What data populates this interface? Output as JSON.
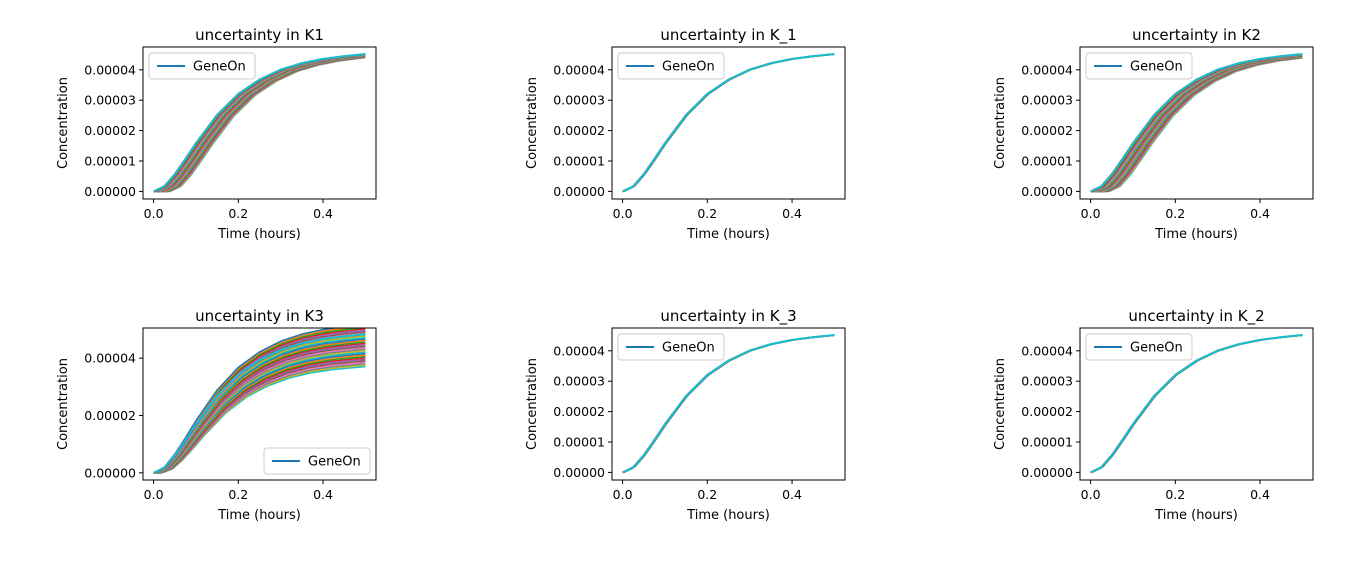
{
  "chart_data": [
    {
      "type": "line",
      "title": "uncertainty in K1",
      "xlabel": "Time (hours)",
      "ylabel": "Concentration",
      "xlim": [
        -0.025,
        0.525
      ],
      "ylim": [
        -2.5e-06,
        4.75e-05
      ],
      "xticks": [
        "0.0",
        "0.2",
        "0.4"
      ],
      "yticks": [
        "0.00000",
        "0.00001",
        "0.00002",
        "0.00003",
        "0.00004"
      ],
      "legend": {
        "label": "GeneOn",
        "position": "upper left"
      },
      "ensemble": {
        "curves": 30,
        "shift_min": 0.0,
        "shift_max": 0.04,
        "scale_min": 1.0,
        "scale_max": 0.985
      },
      "highlight_series": {
        "name": "GeneOn",
        "x": [
          0,
          0.025,
          0.05,
          0.075,
          0.1,
          0.15,
          0.2,
          0.25,
          0.3,
          0.35,
          0.4,
          0.45,
          0.5
        ],
        "y": [
          0,
          1.7e-06,
          5.7e-06,
          1.07e-05,
          1.59e-05,
          2.52e-05,
          3.21e-05,
          3.68e-05,
          4.01e-05,
          4.22e-05,
          4.36e-05,
          4.45e-05,
          4.52e-05
        ]
      }
    },
    {
      "type": "line",
      "title": "uncertainty in K_1",
      "xlabel": "Time (hours)",
      "ylabel": "Concentration",
      "xlim": [
        -0.025,
        0.525
      ],
      "ylim": [
        -2.5e-06,
        4.75e-05
      ],
      "xticks": [
        "0.0",
        "0.2",
        "0.4"
      ],
      "yticks": [
        "0.00000",
        "0.00001",
        "0.00002",
        "0.00003",
        "0.00004"
      ],
      "legend": {
        "label": "GeneOn",
        "position": "upper left"
      },
      "ensemble": {
        "curves": 30,
        "shift_min": 0.0,
        "shift_max": 0.003,
        "scale_min": 1.0,
        "scale_max": 0.999
      },
      "highlight_series": {
        "name": "GeneOn",
        "x": [
          0,
          0.025,
          0.05,
          0.075,
          0.1,
          0.15,
          0.2,
          0.25,
          0.3,
          0.35,
          0.4,
          0.45,
          0.5
        ],
        "y": [
          0,
          1.7e-06,
          5.7e-06,
          1.07e-05,
          1.59e-05,
          2.52e-05,
          3.21e-05,
          3.68e-05,
          4.01e-05,
          4.22e-05,
          4.36e-05,
          4.45e-05,
          4.52e-05
        ]
      }
    },
    {
      "type": "line",
      "title": "uncertainty in K2",
      "xlabel": "Time (hours)",
      "ylabel": "Concentration",
      "xlim": [
        -0.025,
        0.525
      ],
      "ylim": [
        -2.5e-06,
        4.75e-05
      ],
      "xticks": [
        "0.0",
        "0.2",
        "0.4"
      ],
      "yticks": [
        "0.00000",
        "0.00001",
        "0.00002",
        "0.00003",
        "0.00004"
      ],
      "legend": {
        "label": "GeneOn",
        "position": "upper left"
      },
      "ensemble": {
        "curves": 30,
        "shift_min": 0.0,
        "shift_max": 0.045,
        "scale_min": 1.0,
        "scale_max": 0.985
      },
      "highlight_series": {
        "name": "GeneOn",
        "x": [
          0,
          0.025,
          0.05,
          0.075,
          0.1,
          0.15,
          0.2,
          0.25,
          0.3,
          0.35,
          0.4,
          0.45,
          0.5
        ],
        "y": [
          0,
          1.7e-06,
          5.7e-06,
          1.07e-05,
          1.59e-05,
          2.52e-05,
          3.21e-05,
          3.68e-05,
          4.01e-05,
          4.22e-05,
          4.36e-05,
          4.45e-05,
          4.52e-05
        ]
      }
    },
    {
      "type": "line",
      "title": "uncertainty in K3",
      "xlabel": "Time (hours)",
      "ylabel": "Concentration",
      "xlim": [
        -0.025,
        0.525
      ],
      "ylim": [
        -2.5e-06,
        5.05e-05
      ],
      "xticks": [
        "0.0",
        "0.2",
        "0.4"
      ],
      "yticks": [
        "0.00000",
        "0.00002",
        "0.00004"
      ],
      "legend": {
        "label": "GeneOn",
        "position": "lower right"
      },
      "ensemble": {
        "curves": 30,
        "shift_min": 0.0,
        "shift_max": 0.02,
        "scale_min": 1.07,
        "scale_max": 0.77
      },
      "highlight_series": {
        "name": "GeneOn",
        "x": [
          0,
          0.025,
          0.05,
          0.075,
          0.1,
          0.15,
          0.2,
          0.25,
          0.3,
          0.35,
          0.4,
          0.45,
          0.5
        ],
        "y": [
          0,
          1.8e-06,
          6.1e-06,
          1.14e-05,
          1.7e-05,
          2.7e-05,
          3.44e-05,
          3.94e-05,
          4.29e-05,
          4.52e-05,
          4.67e-05,
          4.76e-05,
          4.84e-05
        ]
      }
    },
    {
      "type": "line",
      "title": "uncertainty in K_3",
      "xlabel": "Time (hours)",
      "ylabel": "Concentration",
      "xlim": [
        -0.025,
        0.525
      ],
      "ylim": [
        -2.5e-06,
        4.75e-05
      ],
      "xticks": [
        "0.0",
        "0.2",
        "0.4"
      ],
      "yticks": [
        "0.00000",
        "0.00001",
        "0.00002",
        "0.00003",
        "0.00004"
      ],
      "legend": {
        "label": "GeneOn",
        "position": "upper left"
      },
      "ensemble": {
        "curves": 30,
        "shift_min": 0.0,
        "shift_max": 0.003,
        "scale_min": 1.0,
        "scale_max": 0.999
      },
      "highlight_series": {
        "name": "GeneOn",
        "x": [
          0,
          0.025,
          0.05,
          0.075,
          0.1,
          0.15,
          0.2,
          0.25,
          0.3,
          0.35,
          0.4,
          0.45,
          0.5
        ],
        "y": [
          0,
          1.7e-06,
          5.7e-06,
          1.07e-05,
          1.59e-05,
          2.52e-05,
          3.21e-05,
          3.68e-05,
          4.01e-05,
          4.22e-05,
          4.36e-05,
          4.45e-05,
          4.52e-05
        ]
      }
    },
    {
      "type": "line",
      "title": "uncertainty in K_2",
      "xlabel": "Time (hours)",
      "ylabel": "Concentration",
      "xlim": [
        -0.025,
        0.525
      ],
      "ylim": [
        -2.5e-06,
        4.75e-05
      ],
      "xticks": [
        "0.0",
        "0.2",
        "0.4"
      ],
      "yticks": [
        "0.00000",
        "0.00001",
        "0.00002",
        "0.00003",
        "0.00004"
      ],
      "legend": {
        "label": "GeneOn",
        "position": "upper left"
      },
      "ensemble": {
        "curves": 30,
        "shift_min": 0.0,
        "shift_max": 0.003,
        "scale_min": 1.0,
        "scale_max": 0.999
      },
      "highlight_series": {
        "name": "GeneOn",
        "x": [
          0,
          0.025,
          0.05,
          0.075,
          0.1,
          0.15,
          0.2,
          0.25,
          0.3,
          0.35,
          0.4,
          0.45,
          0.5
        ],
        "y": [
          0,
          1.7e-06,
          5.7e-06,
          1.07e-05,
          1.59e-05,
          2.52e-05,
          3.21e-05,
          3.68e-05,
          4.01e-05,
          4.22e-05,
          4.36e-05,
          4.45e-05,
          4.52e-05
        ]
      }
    }
  ],
  "colors": {
    "series": [
      "#1f77b4",
      "#ff7f0e",
      "#2ca02c",
      "#d62728",
      "#9467bd",
      "#8c564b",
      "#e377c2",
      "#7f7f7f",
      "#bcbd22",
      "#17becf"
    ],
    "legend_line": "#1f77b4",
    "top_curve": "#17becf"
  }
}
